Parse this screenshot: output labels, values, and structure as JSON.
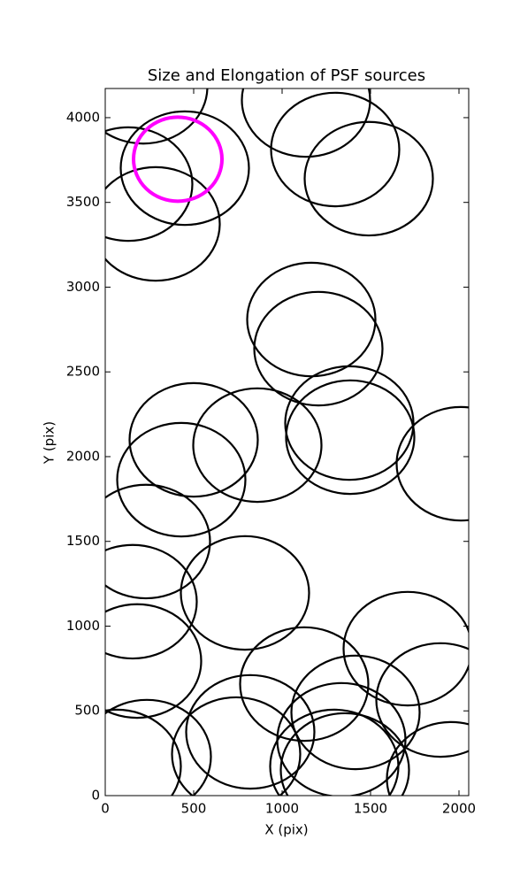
{
  "chart_data": {
    "type": "ellipse",
    "title": "Size and Elongation of PSF sources",
    "xlabel": "X (pix)",
    "ylabel": "Y (pix)",
    "xlim": [
      0,
      2055
    ],
    "ylim": [
      0,
      4172
    ],
    "xticks": [
      0,
      500,
      1000,
      1500,
      2000
    ],
    "yticks": [
      0,
      500,
      1000,
      1500,
      2000,
      2500,
      3000,
      3500,
      4000
    ],
    "ellipses": {
      "color": "#000000",
      "x": [
        215,
        130,
        450,
        285,
        1135,
        1300,
        1490,
        1165,
        1205,
        500,
        860,
        1380,
        1385,
        2010,
        430,
        230,
        155,
        790,
        180,
        1710,
        1125,
        1415,
        1895,
        740,
        820,
        1335,
        1295,
        235,
        65,
        1955,
        1355
      ],
      "y": [
        4182,
        3608,
        3702,
        3373,
        4104,
        3812,
        3640,
        2809,
        2637,
        2099,
        2068,
        2198,
        2115,
        1958,
        1864,
        1499,
        1144,
        1196,
        794,
        867,
        658,
        491,
        564,
        245,
        376,
        329,
        172,
        230,
        172,
        99,
        151
      ],
      "width": [
        725,
        725,
        725,
        725,
        725,
        725,
        725,
        725,
        725,
        725,
        725,
        725,
        725,
        725,
        725,
        725,
        725,
        725,
        725,
        725,
        725,
        725,
        725,
        725,
        725,
        725,
        725,
        725,
        725,
        725,
        725
      ],
      "height": [
        670,
        670,
        670,
        670,
        670,
        670,
        670,
        670,
        670,
        670,
        670,
        670,
        670,
        670,
        670,
        670,
        670,
        670,
        670,
        670,
        670,
        670,
        670,
        670,
        670,
        670,
        670,
        670,
        670,
        670,
        670
      ]
    },
    "highlight": {
      "color": "#ff00ff",
      "x": 410,
      "y": 3755,
      "width": 500,
      "height": 496
    }
  }
}
